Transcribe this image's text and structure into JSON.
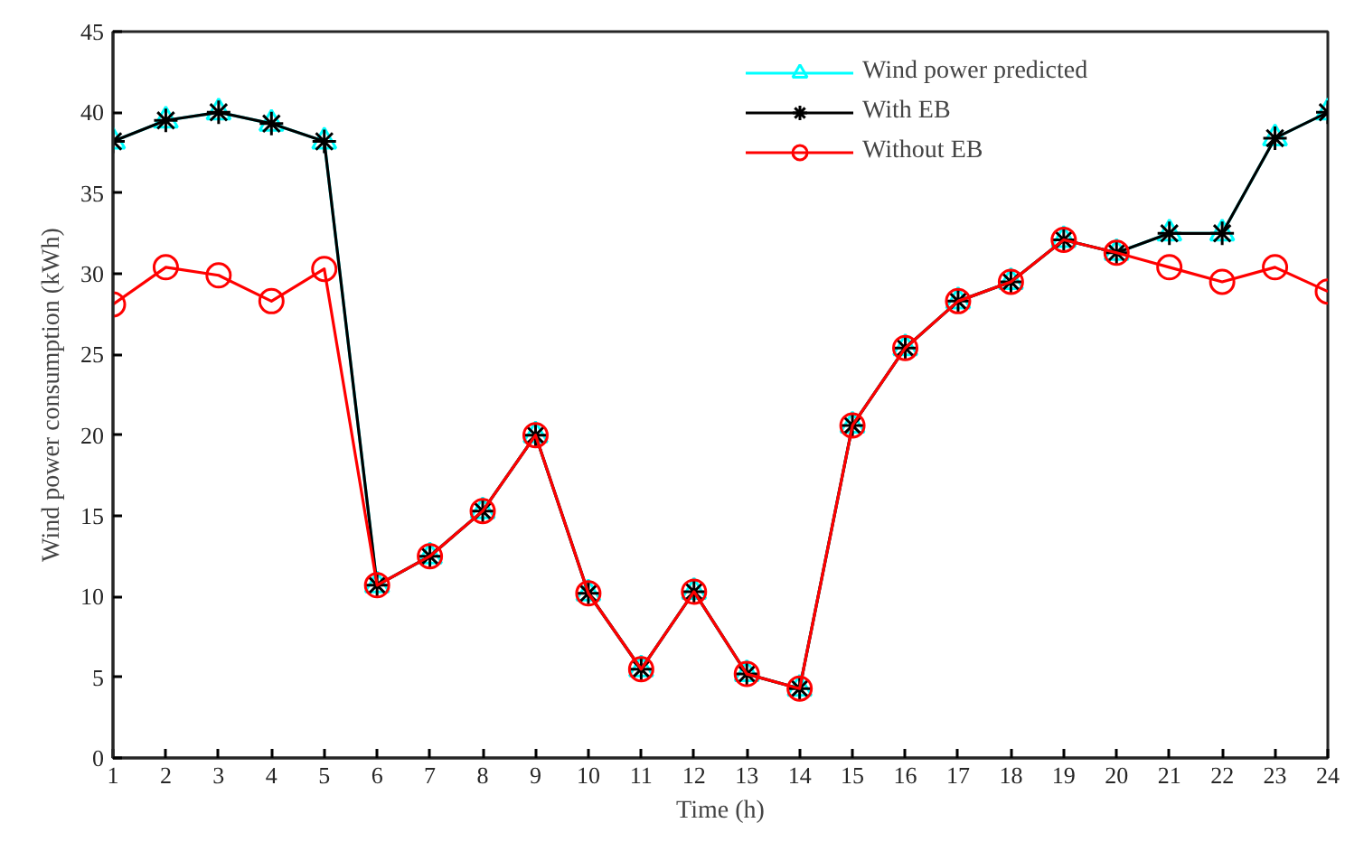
{
  "chart_data": {
    "type": "line",
    "xlabel": "Time (h)",
    "ylabel": "Wind power consumption (kWh)",
    "x": [
      1,
      2,
      3,
      4,
      5,
      6,
      7,
      8,
      9,
      10,
      11,
      12,
      13,
      14,
      15,
      16,
      17,
      18,
      19,
      20,
      21,
      22,
      23,
      24
    ],
    "xlim": [
      1,
      24
    ],
    "xticks": [
      1,
      2,
      3,
      4,
      5,
      6,
      7,
      8,
      9,
      10,
      11,
      12,
      13,
      14,
      15,
      16,
      17,
      18,
      19,
      20,
      21,
      22,
      23,
      24
    ],
    "ylim": [
      0,
      45
    ],
    "yticks": [
      0,
      5,
      10,
      15,
      20,
      25,
      30,
      35,
      40,
      45
    ],
    "grid": false,
    "legend": "top right",
    "line_style": "solid",
    "series": [
      {
        "name": "Wind power predicted",
        "color": "#00ffff",
        "marker": "triangle",
        "values": [
          38.2,
          39.5,
          40,
          39.3,
          38.2,
          10.7,
          12.5,
          15.3,
          20,
          10.2,
          5.5,
          10.3,
          5.2,
          4.3,
          20.6,
          25.4,
          28.3,
          29.5,
          32.1,
          31.3,
          32.5,
          32.5,
          38.4,
          40
        ]
      },
      {
        "name": "With EB",
        "color": "#000000",
        "marker": "cross",
        "values": [
          38.2,
          39.5,
          40,
          39.3,
          38.2,
          10.7,
          12.5,
          15.3,
          20,
          10.2,
          5.5,
          10.3,
          5.2,
          4.3,
          20.6,
          25.4,
          28.3,
          29.5,
          32.1,
          31.3,
          32.5,
          32.5,
          38.4,
          40
        ]
      },
      {
        "name": "Without EB",
        "color": "#ff0000",
        "marker": "circle",
        "values": [
          28.1,
          30.4,
          29.9,
          28.3,
          30.3,
          10.7,
          12.5,
          15.3,
          20,
          10.2,
          5.5,
          10.3,
          5.2,
          4.3,
          20.6,
          25.4,
          28.3,
          29.5,
          32.1,
          31.3,
          30.4,
          29.5,
          30.4,
          28.9
        ]
      }
    ]
  }
}
